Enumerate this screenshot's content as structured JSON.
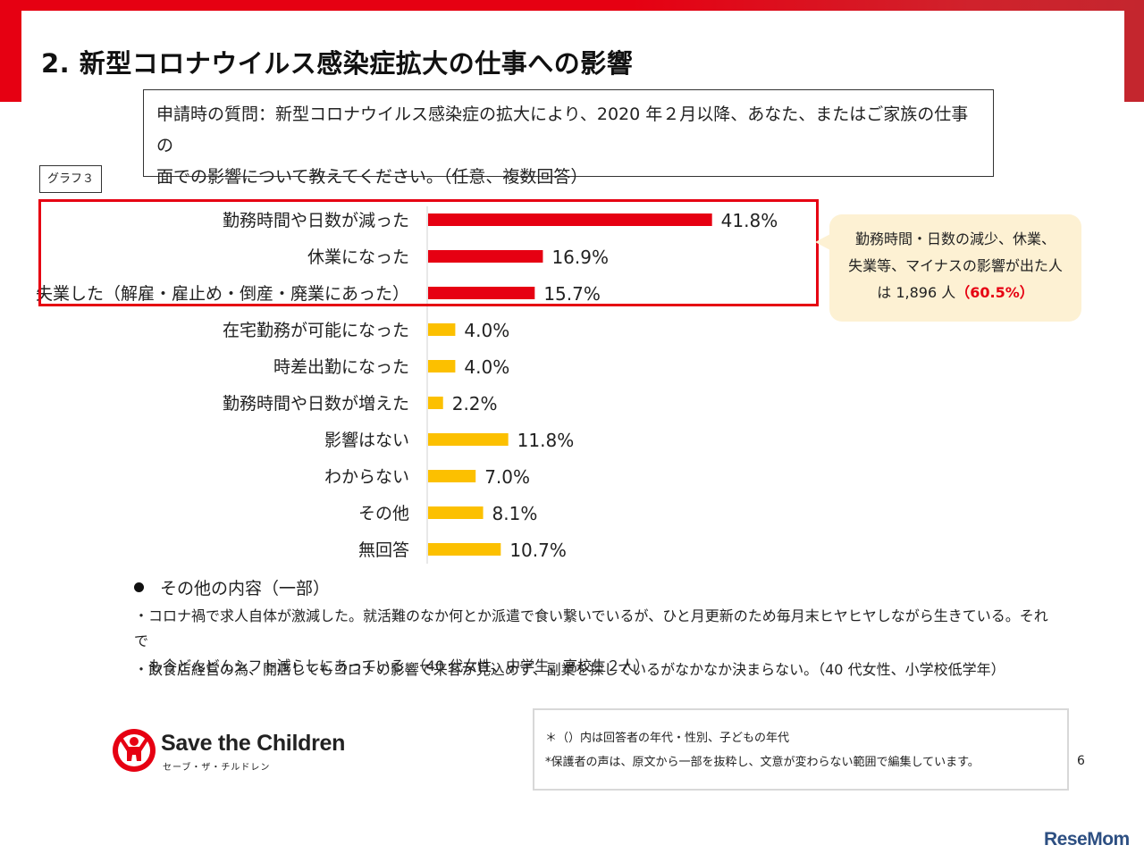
{
  "title": "2.  新型コロナウイルス感染症拡大の仕事への影響",
  "question": {
    "line1": "申請時の質問：新型コロナウイルス感染症の拡大により、2020  年２月以降、あなた、またはご家族の仕事の",
    "line2": "面での影響について教えてください。（任意、複数回答）"
  },
  "graph_tag": "グラフ３",
  "callout": {
    "line1": "勤務時間・日数の減少、休業、",
    "line2": "失業等、マイナスの影響が出た人",
    "line3_prefix": "は 1,896 人",
    "line3_pct": "（60.5%）"
  },
  "colors": {
    "negative": "#e60012",
    "other": "#fcc000",
    "accent_red": "#e60012",
    "callout_bg": "#fdf1d3"
  },
  "chart_data": {
    "type": "bar",
    "orientation": "horizontal",
    "categories": [
      "勤務時間や日数が減った",
      "休業になった",
      "失業した（解雇・雇止め・倒産・廃業にあった）",
      "在宅勤務が可能になった",
      "時差出勤になった",
      "勤務時間や日数が増えた",
      "影響はない",
      "わからない",
      "その他",
      "無回答"
    ],
    "values": [
      41.8,
      16.9,
      15.7,
      4.0,
      4.0,
      2.2,
      11.8,
      7.0,
      8.1,
      10.7
    ],
    "value_labels": [
      "41.8%",
      "16.9%",
      "15.7%",
      "4.0%",
      "4.0%",
      "2.2%",
      "11.8%",
      "7.0%",
      "8.1%",
      "10.7%"
    ],
    "highlighted": [
      true,
      true,
      true,
      false,
      false,
      false,
      false,
      false,
      false,
      false
    ],
    "unit": "%",
    "xlim": [
      0,
      45
    ],
    "grid": false,
    "legend": "none"
  },
  "other_section": {
    "heading": "その他の内容（一部）",
    "comments": [
      {
        "line1": "・コロナ禍で求人自体が激減した。就活難のなか何とか派遣で食い繋いでいるが、ひと月更新のため毎月末ヒヤヒヤしながら生きている。それで",
        "line2": "　も今どんどんシフト減らしにあっている。（40 代女性、中学生、高校生２人）"
      },
      {
        "line1": "・飲食店経営の為、開店してもコロナの影響で来客が見込めず、副業を探しているがなかなか決まらない。（40 代女性、小学校低学年）"
      }
    ]
  },
  "logo": {
    "name": "Save the Children",
    "sub": "セーブ・ザ・チルドレン"
  },
  "notes": {
    "line1": "＊（）内は回答者の年代・性別、子どもの年代",
    "line2": "*保護者の声は、原文から一部を抜粋し、文意が変わらない範囲で編集しています。"
  },
  "page_number": "6",
  "watermark": "ReseMom"
}
